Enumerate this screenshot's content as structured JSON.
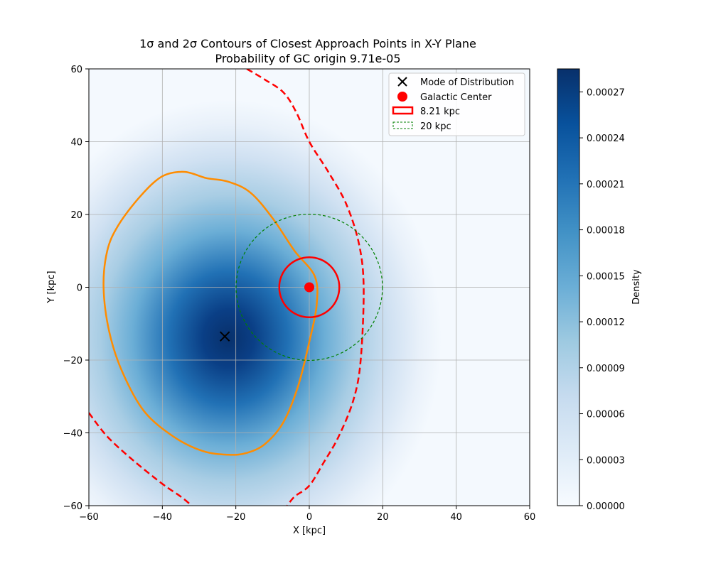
{
  "chart_data": {
    "type": "heatmap",
    "title_line1": "1σ and 2σ Contours of Closest Approach Points in X-Y Plane",
    "title_line2": "Probability of GC origin 9.71e-05",
    "xlabel": "X [kpc]",
    "ylabel": "Y [kpc]",
    "xlim": [
      -60,
      60
    ],
    "ylim": [
      -60,
      60
    ],
    "x_ticks": [
      -60,
      -40,
      -20,
      0,
      20,
      40,
      60
    ],
    "y_ticks": [
      -60,
      -40,
      -20,
      0,
      20,
      40,
      60
    ],
    "x_tick_labels": [
      "−60",
      "−40",
      "−20",
      "0",
      "20",
      "40",
      "60"
    ],
    "y_tick_labels": [
      "−60",
      "−40",
      "−20",
      "0",
      "20",
      "40",
      "60"
    ],
    "grid": true,
    "density_peak": {
      "x": -22,
      "y": -14
    },
    "mode_of_distribution": {
      "x": -23,
      "y": -13.5
    },
    "galactic_center": {
      "x": 0,
      "y": 0
    },
    "circle_8kpc_radius": 8.21,
    "circle_20kpc_radius": 20,
    "contour_1sigma": [
      [
        -56,
        0
      ],
      [
        -55,
        10
      ],
      [
        -52,
        17
      ],
      [
        -46,
        25
      ],
      [
        -40,
        30.5
      ],
      [
        -34,
        31.7
      ],
      [
        -28,
        30
      ],
      [
        -22,
        29
      ],
      [
        -16,
        26
      ],
      [
        -10,
        19
      ],
      [
        -4,
        10
      ],
      [
        1.5,
        3
      ],
      [
        2,
        -5
      ],
      [
        0,
        -15
      ],
      [
        -3,
        -27
      ],
      [
        -7,
        -37
      ],
      [
        -12,
        -43
      ],
      [
        -17,
        -45.5
      ],
      [
        -22,
        -46
      ],
      [
        -29,
        -45
      ],
      [
        -37,
        -41
      ],
      [
        -45,
        -34
      ],
      [
        -51,
        -23
      ],
      [
        -54.5,
        -12
      ]
    ],
    "contour_2sigma": [
      [
        -17,
        60
      ],
      [
        -12,
        57
      ],
      [
        -7,
        53.5
      ],
      [
        -3.5,
        48
      ],
      [
        0,
        40
      ],
      [
        5,
        32
      ],
      [
        10,
        23
      ],
      [
        13.5,
        12
      ],
      [
        14.8,
        0
      ],
      [
        14,
        -20
      ],
      [
        12,
        -31
      ],
      [
        8,
        -41
      ],
      [
        4,
        -48
      ],
      [
        0,
        -54.5
      ],
      [
        -4,
        -57.5
      ],
      [
        -6,
        -60
      ]
    ],
    "contour_2sigma_bottom_left": [
      [
        -60,
        -34.5
      ],
      [
        -55,
        -41
      ],
      [
        -48,
        -47.5
      ],
      [
        -40,
        -54
      ],
      [
        -35,
        -57.5
      ],
      [
        -32,
        -60
      ]
    ],
    "legend": {
      "placement": "top-right",
      "entries": [
        {
          "label": "Mode of Distribution"
        },
        {
          "label": "Galactic Center"
        },
        {
          "label": "8.21 kpc"
        },
        {
          "label": "20 kpc"
        }
      ]
    },
    "colorbar": {
      "label": "Density",
      "min": 0,
      "max": 0.000285,
      "ticks": [
        0,
        3e-05,
        6e-05,
        9e-05,
        0.00012,
        0.00015,
        0.00018,
        0.00021,
        0.00024,
        0.00027
      ],
      "tick_labels": [
        "0.00000",
        "0.00003",
        "0.00006",
        "0.00009",
        "0.00012",
        "0.00015",
        "0.00018",
        "0.00021",
        "0.00024",
        "0.00027"
      ]
    },
    "colors": {
      "contour_1sigma": "#ff8c00",
      "contour_2sigma": "#ff0000",
      "circle_8kpc": "#ff0000",
      "circle_20kpc": "#008000",
      "galactic_center": "#ff0000",
      "mode_marker": "#000000",
      "grid": "#b0b0b0"
    }
  }
}
